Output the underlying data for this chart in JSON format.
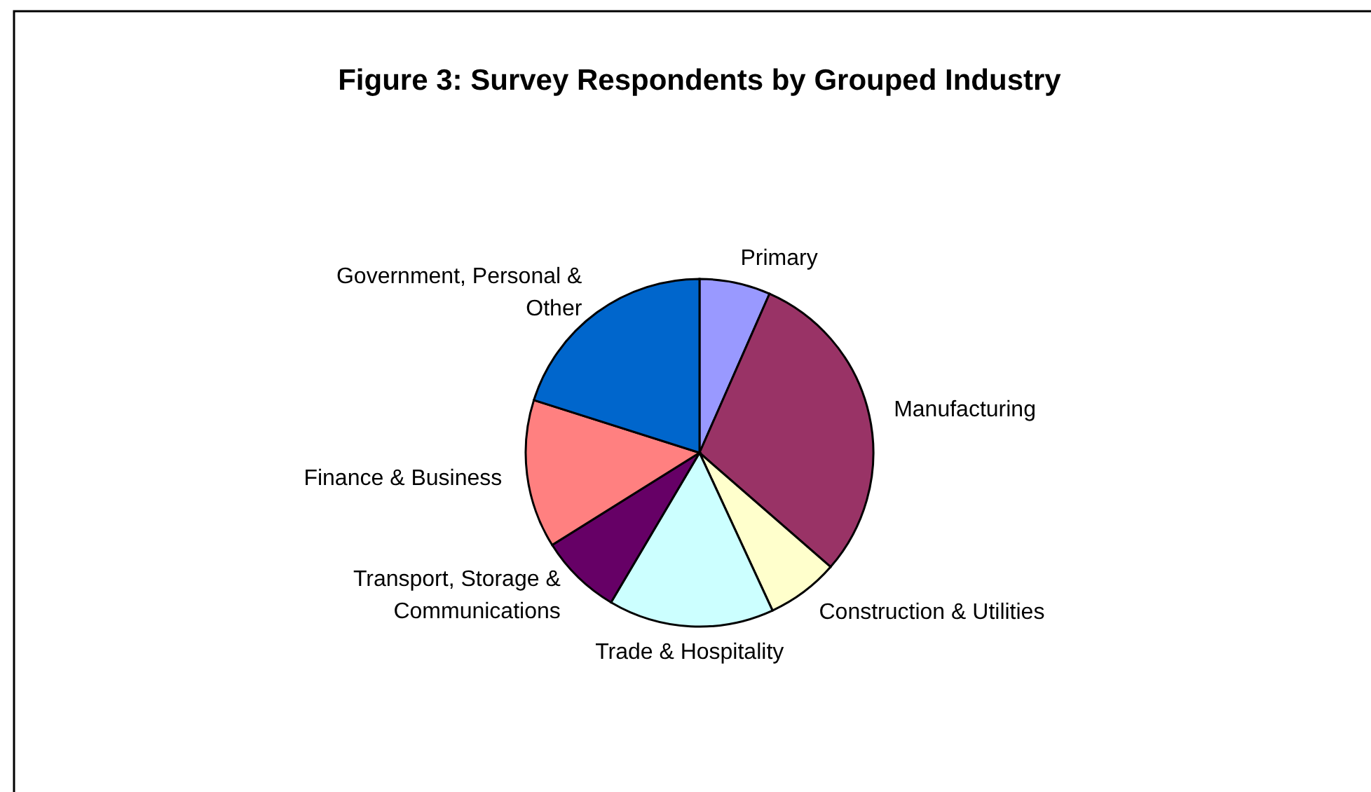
{
  "chart_data": {
    "type": "pie",
    "title": "Figure 3: Survey Respondents by Grouped Industry",
    "categories": [
      "Primary",
      "Manufacturing",
      "Construction & Utilities",
      "Trade & Hospitality",
      "Transport, Storage & Communications",
      "Finance & Business",
      "Government, Personal & Other"
    ],
    "values": [
      6.6,
      29.8,
      6.7,
      15.4,
      7.6,
      13.8,
      20.1
    ],
    "colors": [
      "#9999ff",
      "#993366",
      "#ffffcc",
      "#ccffff",
      "#660066",
      "#ff8080",
      "#0066cc"
    ]
  }
}
